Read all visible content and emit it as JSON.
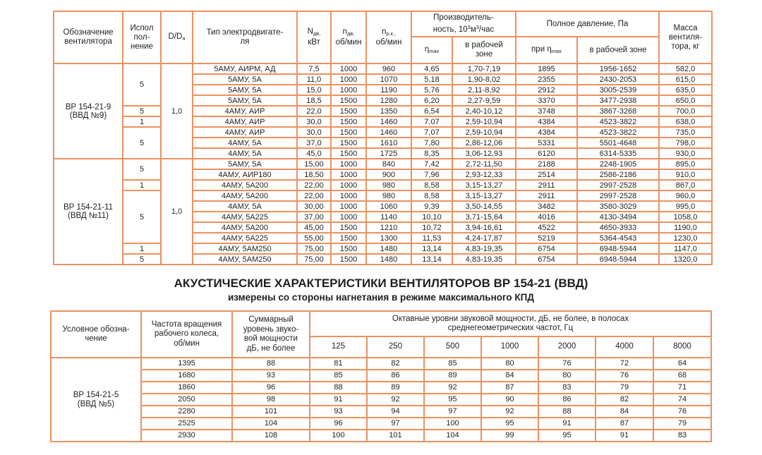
{
  "colors": {
    "border": "#EC9160",
    "text": "#1f1f1f",
    "background": "#ffffff"
  },
  "table1": {
    "header": {
      "designation": "Обозначение\nвентилятора",
      "ispolnenie": "Испол\nпол-\nнение",
      "d_sym": "D/D",
      "d_sub": "н",
      "motor": "Тип электродвигате-\nля",
      "n_sym": "N",
      "n_sub": "дв,",
      "n_unit": "кВт",
      "nd_sym": "n",
      "nd_sub": "дв,",
      "nd_unit": "об/мин",
      "nrk_sym": "n",
      "nrk_sub": "р.к.,",
      "nrk_unit": "об/мин",
      "perf_l1": "Производитель-",
      "perf_p1": "ность, 10",
      "perf_s1": "3",
      "perf_p2": "м",
      "perf_s2": "3",
      "perf_p3": "/час",
      "eta_sym": "η",
      "eta_sub": "max",
      "zone": "в рабочей\nзоне",
      "pressure": "Полное давление, Па",
      "pri": "при ",
      "zone2": "в рабочей зоне",
      "mass": "Масса\nвентиля-\nтора, кг"
    },
    "blocks": [
      {
        "designation": "ВР 154-21-9\n(ВВД №9)",
        "d_dn": "1,0",
        "groups": [
          {
            "label": "5",
            "span": 4
          },
          {
            "label": "5",
            "span": 1
          },
          {
            "label": "1",
            "span": 1
          },
          {
            "label": "5",
            "span": 3
          }
        ],
        "rows": [
          [
            "5АМУ, АИРМ, АД",
            "7,5",
            "1000",
            "960",
            "4,65",
            "1,70-7,19",
            "1895",
            "1956-1652",
            "582,0"
          ],
          [
            "5АМУ, 5А",
            "11,0",
            "1000",
            "1070",
            "5,18",
            "1,90-8,02",
            "2355",
            "2430-2053",
            "615,0"
          ],
          [
            "5АМУ, 5А",
            "15,0",
            "1000",
            "1190",
            "5,76",
            "2,11-8,92",
            "2912",
            "3005-2539",
            "635,0"
          ],
          [
            "5АМУ, 5А",
            "18,5",
            "1500",
            "1280",
            "6,20",
            "2,27-9,59",
            "3370",
            "3477-2938",
            "650,0"
          ],
          [
            "4АМУ, АИР",
            "22,0",
            "1500",
            "1350",
            "6,54",
            "2,40-10,12",
            "3748",
            "3867-3268",
            "700,0"
          ],
          [
            "4АМУ, АИР",
            "30,0",
            "1500",
            "1460",
            "7,07",
            "2,59-10,94",
            "4384",
            "4523-3822",
            "638,0"
          ],
          [
            "4АМУ, АИР",
            "30,0",
            "1500",
            "1460",
            "7,07",
            "2,59-10,94",
            "4384",
            "4523-3822",
            "735,0"
          ],
          [
            "4АМУ, 5А",
            "37,0",
            "1500",
            "1610",
            "7,80",
            "2,86-12,06",
            "5331",
            "5501-4648",
            "798,0"
          ],
          [
            "4АМУ, 5А",
            "45,0",
            "1500",
            "1725",
            "8,35",
            "3,06-12,93",
            "6120",
            "6314-5335",
            "930,0"
          ]
        ]
      },
      {
        "designation": "ВР 154-21-11\n(ВВД №11)",
        "d_dn": "1,0",
        "groups": [
          {
            "label": "5",
            "span": 2
          },
          {
            "label": "1",
            "span": 1
          },
          {
            "label": "5",
            "span": 5
          },
          {
            "label": "1",
            "span": 1
          },
          {
            "label": "5",
            "span": 1
          }
        ],
        "rows": [
          [
            "5АМУ, 5А",
            "15,00",
            "1000",
            "840",
            "7,42",
            "2,72-11,50",
            "2188",
            "2248-1905",
            "895,0"
          ],
          [
            "4АМУ, АИР180",
            "18,50",
            "1000",
            "900",
            "7,96",
            "2,93-12,33",
            "2514",
            "2586-2186",
            "910,0"
          ],
          [
            "4АМУ, 5А200",
            "22,00",
            "1000",
            "980",
            "8,58",
            "3,15-13,27",
            "2911",
            "2997-2528",
            "867,0"
          ],
          [
            "4АМУ, 5А200",
            "22,00",
            "1000",
            "980",
            "8,58",
            "3,15-13,27",
            "2911",
            "2997-2528",
            "960,0"
          ],
          [
            "4АМУ, 5А",
            "30,00",
            "1000",
            "1060",
            "9,39",
            "3,50-14,55",
            "3482",
            "3580-3029",
            "995,0"
          ],
          [
            "4АМУ, 5А225",
            "37,00",
            "1000",
            "1140",
            "10,10",
            "3,71-15,64",
            "4016",
            "4130-3494",
            "1058,0"
          ],
          [
            "4АМУ, 5А200",
            "45,00",
            "1500",
            "1210",
            "10,72",
            "3,94-16,61",
            "4522",
            "4650-3933",
            "1190,0"
          ],
          [
            "4АМУ, 5А225",
            "55,00",
            "1500",
            "1300",
            "11,53",
            "4,24-17,87",
            "5219",
            "5364-4543",
            "1230,0"
          ],
          [
            "4АМУ, 5АМ250",
            "75,00",
            "1500",
            "1480",
            "13,14",
            "4,83-19,35",
            "6754",
            "6948-5944",
            "1147,0"
          ],
          [
            "4АМУ, 5АМ250",
            "75,00",
            "1500",
            "1480",
            "13,14",
            "4,83-19,35",
            "6754",
            "6948-5944",
            "1320,0"
          ]
        ]
      }
    ]
  },
  "heading": {
    "title": "АКУСТИЧЕСКИЕ ХАРАКТЕРИСТИКИ ВЕНТИЛЯТОРОВ ВР 154-21 (ВВД)",
    "subtitle": "измерены со стороны нагнетания в режиме максимального КПД"
  },
  "table2": {
    "header": {
      "designation": "Условное обозна-\nчение",
      "freq": "Частота вращения\nрабочего колеса,\nоб/мин",
      "total": "Суммарный\nуровень звуко-\nвой мощности\nдБ, не более",
      "octave": "Октавные уровни звуковой мощности, дБ, не более, в полосах\nсреднегеометрических частот, Гц",
      "freqs": [
        "125",
        "250",
        "500",
        "1000",
        "2000",
        "4000",
        "8000"
      ]
    },
    "designation": "ВР 154-21-5\n(ВВД №5)",
    "rows": [
      [
        "1395",
        "88",
        "81",
        "82",
        "85",
        "80",
        "76",
        "72",
        "64"
      ],
      [
        "1680",
        "93",
        "85",
        "86",
        "89",
        "84",
        "80",
        "76",
        "68"
      ],
      [
        "1860",
        "96",
        "88",
        "89",
        "92",
        "87",
        "83",
        "79",
        "71"
      ],
      [
        "2050",
        "98",
        "91",
        "92",
        "95",
        "90",
        "86",
        "82",
        "74"
      ],
      [
        "2280",
        "101",
        "93",
        "94",
        "97",
        "92",
        "88",
        "84",
        "76"
      ],
      [
        "2525",
        "104",
        "96",
        "97",
        "100",
        "95",
        "91",
        "87",
        "79"
      ],
      [
        "2930",
        "108",
        "100",
        "101",
        "104",
        "99",
        "95",
        "91",
        "83"
      ]
    ]
  }
}
